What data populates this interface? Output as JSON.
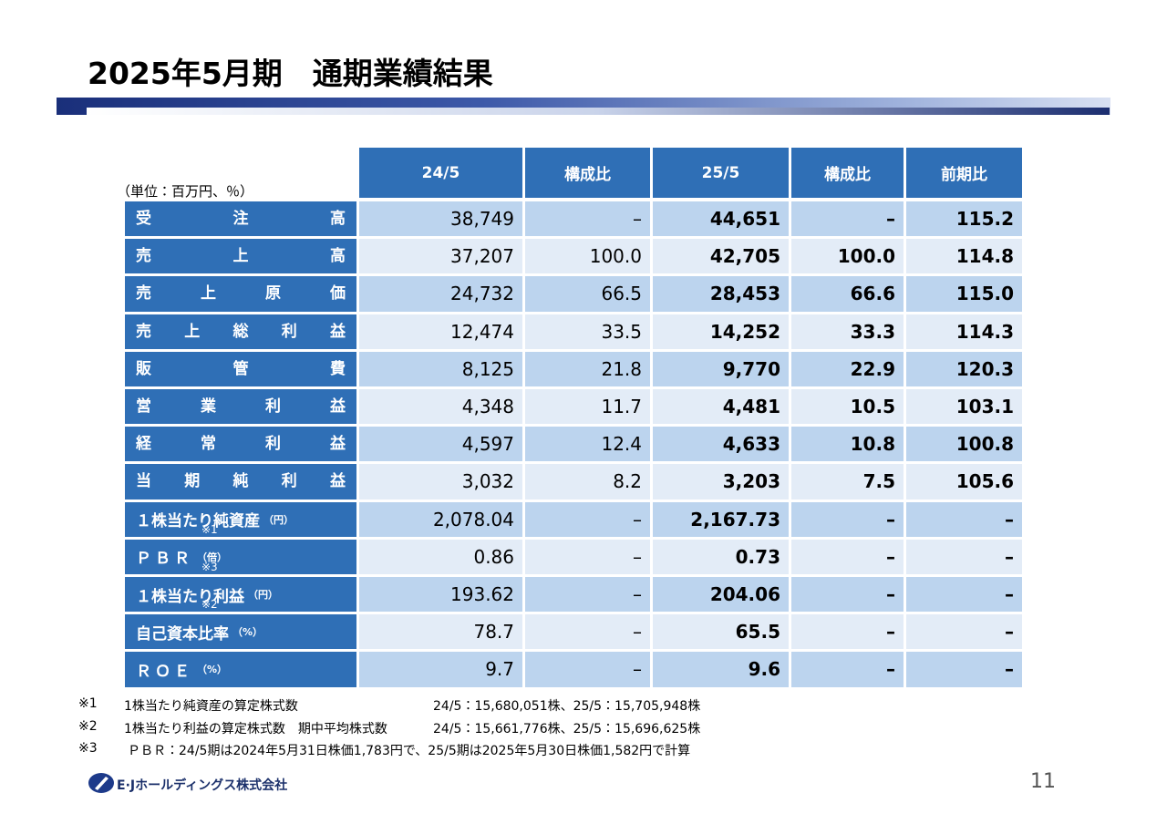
{
  "header": {
    "title": "2025年5月期　通期業績結果"
  },
  "unit": "（単位：百万円、％）",
  "table": {
    "columns": [
      "24/5",
      "構成比",
      "25/5",
      "構成比",
      "前期比"
    ],
    "rows": [
      {
        "label": "受 注 高",
        "cells": [
          "38,749",
          "–",
          "44,651",
          "–",
          "115.2"
        ]
      },
      {
        "label": "売 上 高",
        "cells": [
          "37,207",
          "100.0",
          "42,705",
          "100.0",
          "114.8"
        ]
      },
      {
        "label": "売 上 原 価",
        "cells": [
          "24,732",
          "66.5",
          "28,453",
          "66.6",
          "115.0"
        ]
      },
      {
        "label": "売 上 総 利 益",
        "cells": [
          "12,474",
          "33.5",
          "14,252",
          "33.3",
          "114.3"
        ]
      },
      {
        "label": "販 管 費",
        "cells": [
          "8,125",
          "21.8",
          "9,770",
          "22.9",
          "120.3"
        ]
      },
      {
        "label": "営 業 利 益",
        "cells": [
          "4,348",
          "11.7",
          "4,481",
          "10.5",
          "103.1"
        ]
      },
      {
        "label": "経 常 利 益",
        "cells": [
          "4,597",
          "12.4",
          "4,633",
          "10.8",
          "100.8"
        ]
      },
      {
        "label": "当 期 純 利 益",
        "cells": [
          "3,032",
          "8.2",
          "3,203",
          "7.5",
          "105.6"
        ]
      },
      {
        "label": "１株当たり純資産",
        "unit": "（円）",
        "note": "※1",
        "cells": [
          "2,078.04",
          "–",
          "2,167.73",
          "–",
          "–"
        ]
      },
      {
        "label": "ＰＢＲ",
        "unit": "（倍）",
        "note": "※3",
        "cells": [
          "0.86",
          "–",
          "0.73",
          "–",
          "–"
        ]
      },
      {
        "label": "１株当たり利益",
        "unit": "（円）",
        "note": "※2",
        "cells": [
          "193.62",
          "–",
          "204.06",
          "–",
          "–"
        ]
      },
      {
        "label": "自己資本比率",
        "unit": "（%）",
        "cells": [
          "78.7",
          "–",
          "65.5",
          "–",
          "–"
        ]
      },
      {
        "label": "ＲＯＥ",
        "unit": "（%）",
        "cells": [
          "9.7",
          "–",
          "9.6",
          "–",
          "–"
        ]
      }
    ]
  },
  "footnotes": [
    {
      "mark": "※1",
      "text": "1株当たり純資産の算定株式数",
      "detail": "24/5：15,680,051株、25/5：15,705,948株"
    },
    {
      "mark": "※2",
      "text": "1株当たり利益の算定株式数　期中平均株式数",
      "detail": "24/5：15,661,776株、25/5：15,696,625株"
    },
    {
      "mark": "※3",
      "text": "ＰＢＲ：24/5期は2024年5月31日株価1,783円で、25/5期は2025年5月30日株価1,582円で計算"
    }
  ],
  "footer": {
    "company": "E·Jホールディングス株式会社",
    "page": "11"
  }
}
